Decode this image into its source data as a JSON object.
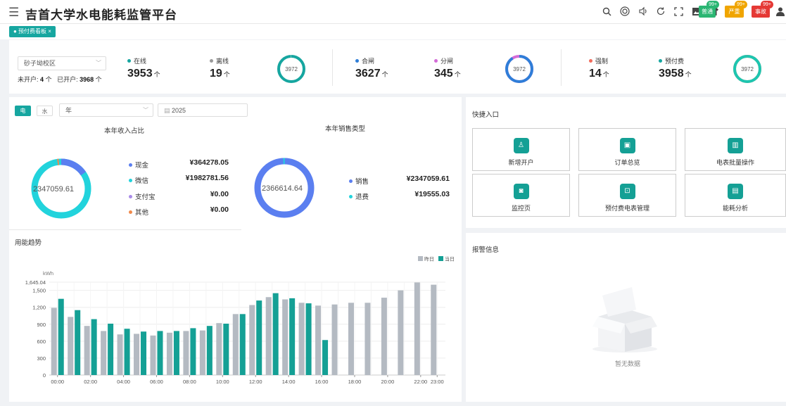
{
  "header": {
    "menu_icon": "menu-icon",
    "title": "吉首大学水电能耗监管平台",
    "icons": [
      "search-icon",
      "target-icon",
      "sound-icon",
      "refresh-icon",
      "fullscreen-icon",
      "image-icon",
      "shirt-icon"
    ],
    "badges": [
      {
        "label": "普通",
        "count": "99+",
        "color": "#2bb673",
        "count_color": "#2bb673"
      },
      {
        "label": "严重",
        "count": "99+",
        "color": "#f0a500",
        "count_color": "#f0a500"
      },
      {
        "label": "事故",
        "count": "99+",
        "color": "#e53935",
        "count_color": "#e53935"
      }
    ],
    "user_icon": "user-icon"
  },
  "tabs": [
    {
      "label": "● 预付费看板 ×"
    }
  ],
  "summary": {
    "campus_select": "砂子坳校区",
    "unopened_label": "未开户:",
    "unopened_value": "4",
    "opened_label": "已开户:",
    "opened_value": "3968",
    "unit": "个",
    "groups": [
      {
        "items": [
          {
            "label": "在线",
            "value": "3953",
            "color": "#16a6a0"
          },
          {
            "label": "离线",
            "value": "19",
            "color": "#999999"
          }
        ],
        "ring_total": "3972"
      },
      {
        "items": [
          {
            "label": "合闸",
            "value": "3627",
            "color": "#2f7ed8"
          },
          {
            "label": "分闸",
            "value": "345",
            "color": "#d46bd8"
          }
        ],
        "ring_total": "3972"
      },
      {
        "items": [
          {
            "label": "强制",
            "value": "14",
            "color": "#f26b5b"
          },
          {
            "label": "预付费",
            "value": "3958",
            "color": "#16a6a0"
          }
        ],
        "ring_total": "3972"
      }
    ]
  },
  "filters": {
    "elec": "电",
    "water": "水",
    "period": "年",
    "year": "2025"
  },
  "income": {
    "title": "本年收入占比",
    "total": "2347059.61",
    "items": [
      {
        "label": "现金",
        "value": "¥364278.05",
        "color": "#5b7ff0"
      },
      {
        "label": "微信",
        "value": "¥1982781.56",
        "color": "#22d3dc"
      },
      {
        "label": "支付宝",
        "value": "¥0.00",
        "color": "#a98be8"
      },
      {
        "label": "其他",
        "value": "¥0.00",
        "color": "#f08a4b"
      }
    ]
  },
  "sales": {
    "title": "本年销售类型",
    "total": "2366614.64",
    "items": [
      {
        "label": "销售",
        "value": "¥2347059.61",
        "color": "#5b7ff0"
      },
      {
        "label": "退费",
        "value": "¥19555.03",
        "color": "#22d3dc"
      }
    ]
  },
  "quick": {
    "title": "快捷入口",
    "items": [
      {
        "label": "新增开户",
        "icon": "add-user-icon"
      },
      {
        "label": "订单总览",
        "icon": "order-icon"
      },
      {
        "label": "电表批量操作",
        "icon": "meter-batch-icon"
      },
      {
        "label": "监控页",
        "icon": "monitor-icon"
      },
      {
        "label": "预付费电表管理",
        "icon": "meter-manage-icon"
      },
      {
        "label": "能耗分析",
        "icon": "analysis-icon"
      }
    ]
  },
  "alarm": {
    "title": "报警信息",
    "empty": "暂无数据"
  },
  "trend": {
    "title": "用能趋势"
  },
  "chart_data": {
    "type": "bar",
    "ylabel": "kWh",
    "ymax_label": "1,645.04",
    "ylim": [
      0,
      1645.04
    ],
    "yticks": [
      0,
      300,
      600,
      900,
      1200,
      1500
    ],
    "ytick_labels": [
      "0",
      "300",
      "600",
      "900",
      "1,200",
      "1,500"
    ],
    "categories": [
      "00:00",
      "01:00",
      "02:00",
      "03:00",
      "04:00",
      "05:00",
      "06:00",
      "07:00",
      "08:00",
      "09:00",
      "10:00",
      "11:00",
      "12:00",
      "13:00",
      "14:00",
      "15:00",
      "16:00",
      "17:00",
      "18:00",
      "19:00",
      "20:00",
      "21:00",
      "22:00",
      "23:00"
    ],
    "xtick_labels": [
      "00:00",
      "",
      "02:00",
      "",
      "04:00",
      "",
      "06:00",
      "",
      "08:00",
      "",
      "10:00",
      "",
      "12:00",
      "",
      "14:00",
      "",
      "16:00",
      "",
      "18:00",
      "",
      "20:00",
      "",
      "22:00",
      "23:00"
    ],
    "series": [
      {
        "name": "昨日",
        "color": "#b4bac2",
        "values": [
          1190,
          1030,
          870,
          780,
          720,
          730,
          700,
          750,
          780,
          790,
          920,
          1080,
          1240,
          1380,
          1340,
          1280,
          1230,
          1250,
          1280,
          1280,
          1370,
          1500,
          1640,
          1600
        ]
      },
      {
        "name": "当日",
        "color": "#14a095",
        "values": [
          1350,
          1150,
          990,
          910,
          820,
          770,
          780,
          780,
          830,
          870,
          910,
          1080,
          1320,
          1450,
          1360,
          1270,
          620,
          null,
          null,
          null,
          null,
          null,
          null,
          null
        ]
      }
    ]
  }
}
